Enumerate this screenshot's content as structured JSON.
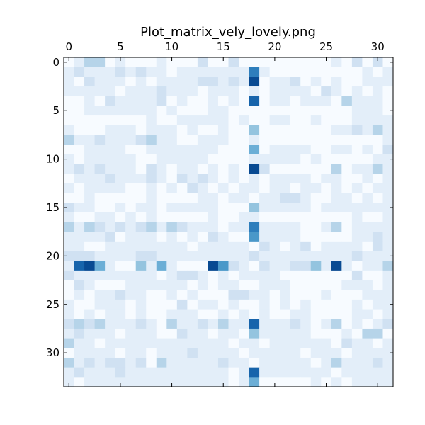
{
  "chart_data": {
    "type": "heatmap",
    "title": "Plot_matrix_vely_lovely.png",
    "xlabel": "",
    "ylabel": "",
    "x_ticks": [
      0,
      5,
      10,
      15,
      20,
      25,
      30
    ],
    "y_ticks": [
      0,
      5,
      10,
      15,
      20,
      25,
      30
    ],
    "x_tick_position": "top",
    "grid": false,
    "colormap": "Blues",
    "vmin": 0,
    "vmax": 10,
    "rows": [
      "01330100010002002000000000102020",
      "12111212110111111171000000000101",
      "10211101011112212190112010100111",
      "11111011121110111010111102101010",
      "00102111120100101080110111031110",
      "00111111101000110000000000001110",
      "00000000100111110100110010001111",
      "10001110111010010040000000112131",
      "31121112311001110010000000000001",
      "00111100111111100050111100110102",
      "10111110011111000011111010000011",
      "12121110210110101092000000301131",
      "01112111210212101010111101100101",
      "10111100101021010110110110101011",
      "00100000100001101101122100110101",
      "21100101101111100041111101111111",
      "10011010100000100110000000001001",
      "31321212313211101171111001301111",
      "11112011101010210061111000001121",
      "11001111111101111102101201111021",
      "22211112211111111121111111112111",
      "18951004151000962102112241910113",
      "21111111101221010111100000002001",
      "02100011111101011001110000011101",
      "01011211001010002211010001000111",
      "10011101000201101001010100001011",
      "10101101001110010101001100001101",
      "23231112103112131181112101301012",
      "12111011100211011041111100010330",
      "31101111111111110110111111021101",
      "01111011011121111011111011101111",
      "31212212031111121101111101311121",
      "12111211111111110181111111011111",
      "10111111111111110150000010101111"
    ]
  }
}
